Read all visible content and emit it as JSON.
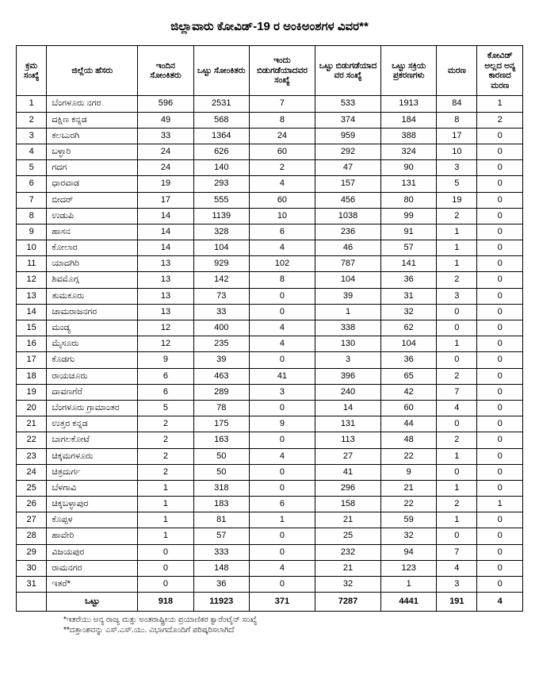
{
  "title": "ಜಿಲ್ಲಾವಾರು ಕೋವಿಡ್-19 ರ ಅಂಕಿಅಂಶಗಳ ವಿವರ**",
  "columns": [
    "ಕ್ರಮ ಸಂಖ್ಯೆ",
    "ಜಿಲ್ಲೆಯ ಹೆಸರು",
    "ಇಂದಿನ ಸೋಂಕಿತರು",
    "ಒಟ್ಟು ಸೋಂಕಿತರು",
    "ಇಂದು ಬಿಡುಗಡೆಯಾದವರ ಸಂಖ್ಯೆ",
    "ಒಟ್ಟು ಬಿಡುಗಡೆಯಾದ ವರ ಸಂಖ್ಯೆ",
    "ಒಟ್ಟು ಸಕ್ರಿಯ ಪ್ರಕರಣಗಳು",
    "ಮರಣ",
    "ಕೋವಿಡ್ ಅಲ್ಲದ ಅನ್ಯ ಕಾರಣದ ಮರಣ"
  ],
  "rows": [
    [
      "1",
      "ಬೆಂಗಳೂರು ನಗರ",
      "596",
      "2531",
      "7",
      "533",
      "1913",
      "84",
      "1"
    ],
    [
      "2",
      "ದಕ್ಷಿಣ ಕನ್ನಡ",
      "49",
      "568",
      "8",
      "374",
      "184",
      "8",
      "2"
    ],
    [
      "3",
      "ಕಲಬುರಗಿ",
      "33",
      "1364",
      "24",
      "959",
      "388",
      "17",
      "0"
    ],
    [
      "4",
      "ಬಳ್ಳಾರಿ",
      "24",
      "626",
      "60",
      "292",
      "324",
      "10",
      "0"
    ],
    [
      "5",
      "ಗದಗ",
      "24",
      "140",
      "2",
      "47",
      "90",
      "3",
      "0"
    ],
    [
      "6",
      "ಧಾರವಾಡ",
      "19",
      "293",
      "4",
      "157",
      "131",
      "5",
      "0"
    ],
    [
      "7",
      "ಬೀದರ್",
      "17",
      "555",
      "60",
      "456",
      "80",
      "19",
      "0"
    ],
    [
      "8",
      "ಉಡುಪಿ",
      "14",
      "1139",
      "10",
      "1038",
      "99",
      "2",
      "0"
    ],
    [
      "9",
      "ಹಾಸನ",
      "14",
      "328",
      "6",
      "236",
      "91",
      "1",
      "0"
    ],
    [
      "10",
      "ಕೋಲಾರ",
      "14",
      "104",
      "4",
      "46",
      "57",
      "1",
      "0"
    ],
    [
      "11",
      "ಯಾದಗಿರಿ",
      "13",
      "929",
      "102",
      "787",
      "141",
      "1",
      "0"
    ],
    [
      "12",
      "ಶಿವಮೊಗ್ಗ",
      "13",
      "142",
      "8",
      "104",
      "36",
      "2",
      "0"
    ],
    [
      "13",
      "ತುಮಕೂರು",
      "13",
      "73",
      "0",
      "39",
      "31",
      "3",
      "0"
    ],
    [
      "14",
      "ಚಾಮರಾಜನಗರ",
      "13",
      "33",
      "0",
      "1",
      "32",
      "0",
      "0"
    ],
    [
      "15",
      "ಮಂಡ್ಯ",
      "12",
      "400",
      "4",
      "338",
      "62",
      "0",
      "0"
    ],
    [
      "16",
      "ಮೈಸೂರು",
      "12",
      "235",
      "4",
      "130",
      "104",
      "1",
      "0"
    ],
    [
      "17",
      "ಕೊಡಗು",
      "9",
      "39",
      "0",
      "3",
      "36",
      "0",
      "0"
    ],
    [
      "18",
      "ರಾಯಚೂರು",
      "6",
      "463",
      "41",
      "396",
      "65",
      "2",
      "0"
    ],
    [
      "19",
      "ದಾವಣಗೆರೆ",
      "6",
      "289",
      "3",
      "240",
      "42",
      "7",
      "0"
    ],
    [
      "20",
      "ಬೆಂಗಳೂರು ಗ್ರಾಮಾಂತರ",
      "5",
      "78",
      "0",
      "14",
      "60",
      "4",
      "0"
    ],
    [
      "21",
      "ಉತ್ತರ ಕನ್ನಡ",
      "2",
      "175",
      "9",
      "131",
      "44",
      "0",
      "0"
    ],
    [
      "22",
      "ಬಾಗಲಕೋಟೆ",
      "2",
      "163",
      "0",
      "113",
      "48",
      "2",
      "0"
    ],
    [
      "23",
      "ಚಿಕ್ಕಮಗಳೂರು",
      "2",
      "50",
      "4",
      "27",
      "22",
      "1",
      "0"
    ],
    [
      "24",
      "ಚಿತ್ರದುರ್ಗ",
      "2",
      "50",
      "0",
      "41",
      "9",
      "0",
      "0"
    ],
    [
      "25",
      "ಬೆಳಗಾವಿ",
      "1",
      "318",
      "0",
      "296",
      "21",
      "1",
      "0"
    ],
    [
      "26",
      "ಚಿಕ್ಕಬಳ್ಳಾಪುರ",
      "1",
      "183",
      "6",
      "158",
      "22",
      "2",
      "1"
    ],
    [
      "27",
      "ಕೊಪ್ಪಳ",
      "1",
      "81",
      "1",
      "21",
      "59",
      "1",
      "0"
    ],
    [
      "28",
      "ಹಾವೇರಿ",
      "1",
      "57",
      "0",
      "25",
      "32",
      "0",
      "0"
    ],
    [
      "29",
      "ವಿಜಯಪುರ",
      "0",
      "333",
      "0",
      "232",
      "94",
      "7",
      "0"
    ],
    [
      "30",
      "ರಾಮನಗರ",
      "0",
      "148",
      "4",
      "21",
      "123",
      "4",
      "0"
    ],
    [
      "31",
      "ಇತರೆ*",
      "0",
      "36",
      "0",
      "32",
      "1",
      "3",
      "0"
    ]
  ],
  "total": [
    "",
    "ಒಟ್ಟು",
    "918",
    "11923",
    "371",
    "7287",
    "4441",
    "191",
    "4"
  ],
  "footnote1": "*ಇತರೆಯು ಅನ್ಯ ರಾಜ್ಯ ಮತ್ತು ಅಂತರಾಷ್ಟ್ರೀಯ ಪ್ರಯಾಣಿಕರ ಕ್ವಾರೆಂಟೈನ್ ಸಂಖ್ಯೆ",
  "footnote2": "**ದತ್ತಾಂಶವನ್ನು ಎಸ್.ಎಸ್.ಯು. ವಿಭಾಗದೊಂದಿಗೆ ಪರಿಷ್ಕರಿಸಲಾಗಿದೆ"
}
